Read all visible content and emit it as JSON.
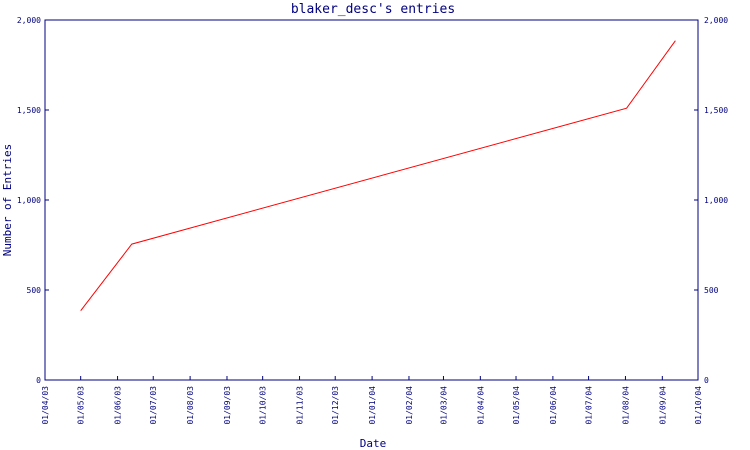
{
  "chart_data": {
    "type": "line",
    "title": "blaker_desc's entries",
    "xlabel": "Date",
    "ylabel": "Number of Entries",
    "ylim": [
      0,
      2000
    ],
    "yticks": [
      0,
      500,
      1000,
      1500,
      2000
    ],
    "ytick_labels": [
      "0",
      "500",
      "1,000",
      "1,500",
      "2,000"
    ],
    "xlim": [
      "2003-04-01",
      "2004-10-01"
    ],
    "xticks": [
      "2003-04-01",
      "2003-05-01",
      "2003-06-01",
      "2003-07-01",
      "2003-08-01",
      "2003-09-01",
      "2003-10-01",
      "2003-11-01",
      "2003-12-01",
      "2004-01-01",
      "2004-02-01",
      "2004-03-01",
      "2004-04-01",
      "2004-05-01",
      "2004-06-01",
      "2004-07-01",
      "2004-08-01",
      "2004-09-01",
      "2004-10-01"
    ],
    "xtick_labels": [
      "01/04/03",
      "01/05/03",
      "01/06/03",
      "01/07/03",
      "01/08/03",
      "01/09/03",
      "01/10/03",
      "01/11/03",
      "01/12/03",
      "01/01/04",
      "01/02/04",
      "01/03/04",
      "01/04/04",
      "01/05/04",
      "01/06/04",
      "01/07/04",
      "01/08/04",
      "01/09/04",
      "01/10/04"
    ],
    "series": [
      {
        "color": "#ff0000",
        "x": [
          "2003-05-01",
          "2003-06-13",
          "2004-08-02",
          "2004-09-12"
        ],
        "y": [
          385,
          755,
          1510,
          1885
        ]
      }
    ],
    "grid": false,
    "legend": "none"
  }
}
